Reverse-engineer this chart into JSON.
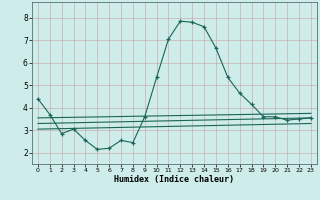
{
  "xlabel": "Humidex (Indice chaleur)",
  "bg_color": "#ceecea",
  "grid_color_major": "#c8a0a0",
  "grid_color_minor": "#b8d8d4",
  "line_color": "#1a6655",
  "xlim": [
    -0.5,
    23.5
  ],
  "ylim": [
    1.5,
    8.7
  ],
  "xticks": [
    0,
    1,
    2,
    3,
    4,
    5,
    6,
    7,
    8,
    9,
    10,
    11,
    12,
    13,
    14,
    15,
    16,
    17,
    18,
    19,
    20,
    21,
    22,
    23
  ],
  "yticks": [
    2,
    3,
    4,
    5,
    6,
    7,
    8
  ],
  "curve1_x": [
    0,
    1,
    2,
    3,
    4,
    5,
    6,
    7,
    8,
    9,
    10,
    11,
    12,
    13,
    14,
    15,
    16,
    17,
    18,
    19,
    20,
    21,
    22,
    23
  ],
  "curve1_y": [
    4.4,
    3.7,
    2.85,
    3.05,
    2.55,
    2.15,
    2.2,
    2.55,
    2.45,
    3.6,
    5.35,
    7.05,
    7.85,
    7.8,
    7.6,
    6.65,
    5.35,
    4.65,
    4.15,
    3.6,
    3.6,
    3.45,
    3.5,
    3.55
  ],
  "curve2_x": [
    0,
    23
  ],
  "curve2_y": [
    3.55,
    3.75
  ],
  "curve3_x": [
    0,
    23
  ],
  "curve3_y": [
    3.3,
    3.55
  ],
  "curve4_x": [
    0,
    23
  ],
  "curve4_y": [
    3.05,
    3.3
  ]
}
